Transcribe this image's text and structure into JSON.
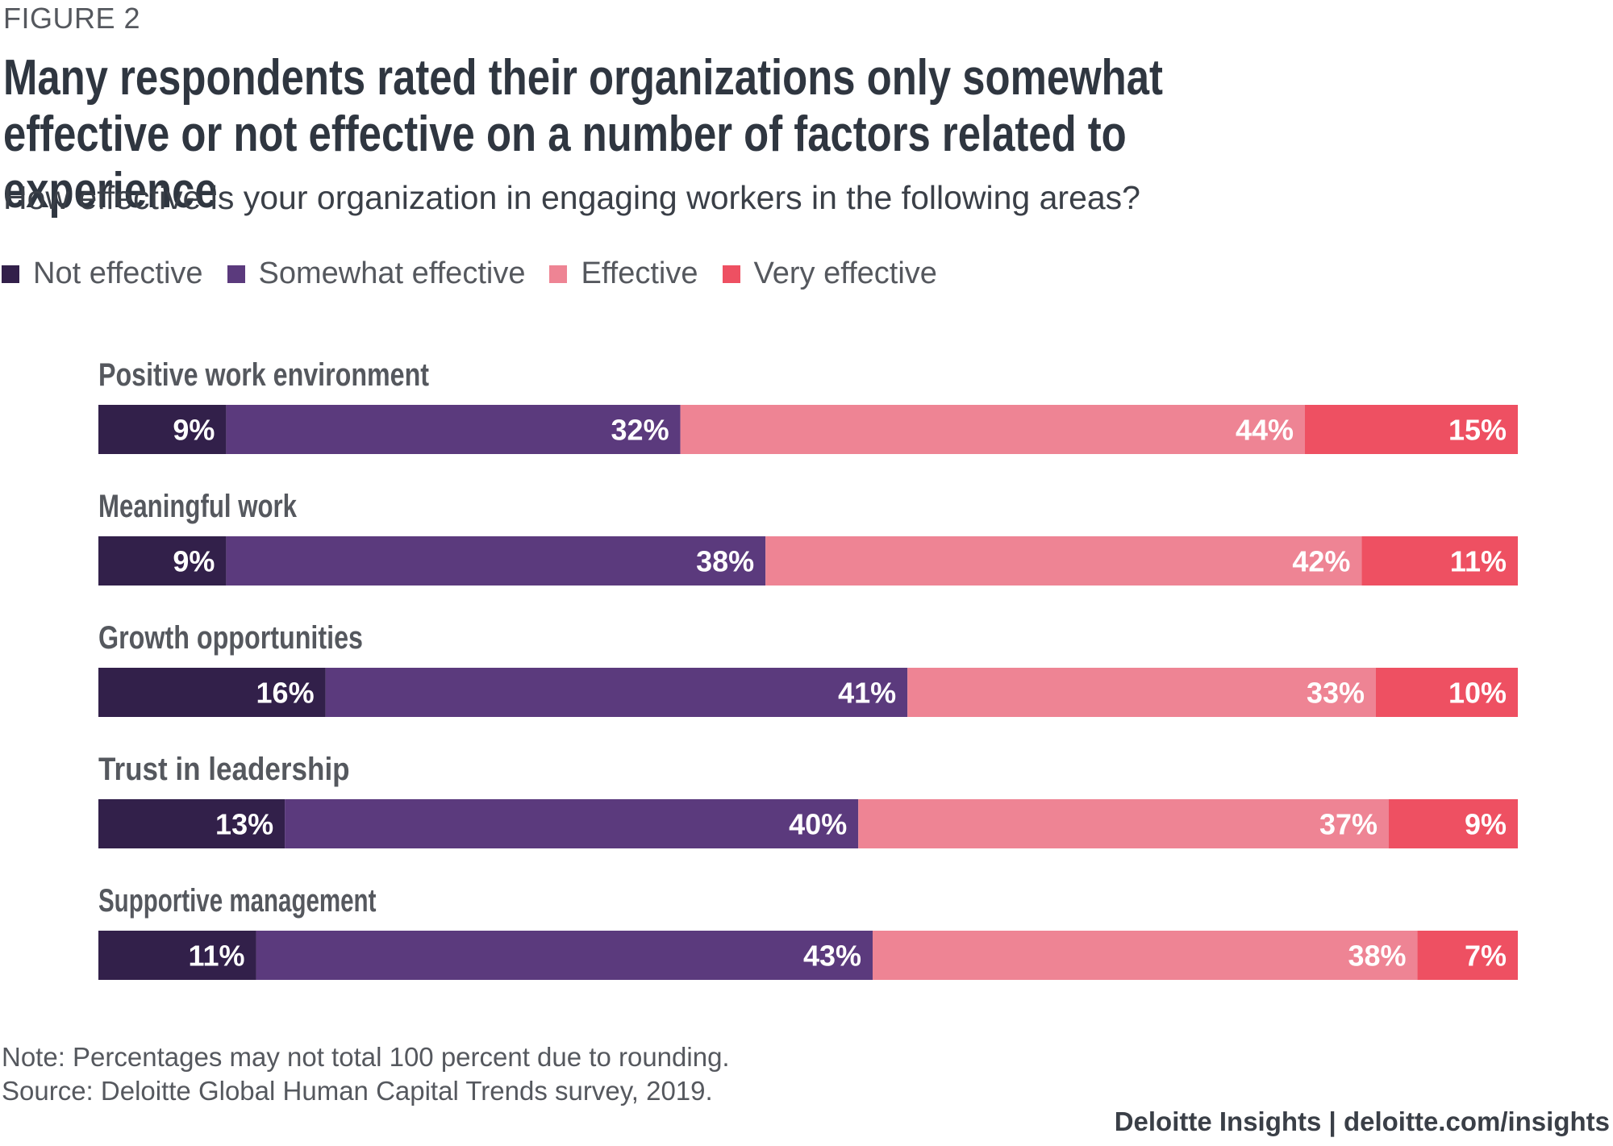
{
  "figure_label": "FIGURE 2",
  "title": "Many respondents rated their organizations only somewhat effective or not effective on a number of factors related to experience",
  "subtitle": "How effective is your organization in engaging workers in the following areas?",
  "note": "Note: Percentages may not total 100 percent due to rounding.",
  "source": "Source: Deloitte Global Human Capital Trends survey, 2019.",
  "brand": "Deloitte Insights | deloitte.com/insights",
  "chart_data": {
    "type": "bar",
    "orientation": "horizontal",
    "stacked": true,
    "categories": [
      "Positive work environment",
      "Meaningful work",
      "Growth opportunities",
      "Trust in leadership",
      "Supportive management"
    ],
    "series": [
      {
        "name": "Not effective",
        "color": "#32204a",
        "values": [
          9,
          9,
          16,
          13,
          11
        ],
        "labels": [
          "9%",
          "9%",
          "16%",
          "13%",
          "11%"
        ]
      },
      {
        "name": "Somewhat effective",
        "color": "#5b3a7d",
        "values": [
          32,
          38,
          41,
          40,
          43
        ],
        "labels": [
          "32%",
          "38%",
          "41%",
          "40%",
          "43%"
        ]
      },
      {
        "name": "Effective",
        "color": "#ee8494",
        "values": [
          44,
          42,
          33,
          37,
          38
        ],
        "labels": [
          "44%",
          "42%",
          "33%",
          "37%",
          "38%"
        ]
      },
      {
        "name": "Very effective",
        "color": "#ee5062",
        "values": [
          15,
          11,
          10,
          9,
          7
        ],
        "labels": [
          "15%",
          "11%",
          "10%",
          "9%",
          "7%"
        ]
      }
    ],
    "legend_position": "top-left",
    "grid": false
  }
}
